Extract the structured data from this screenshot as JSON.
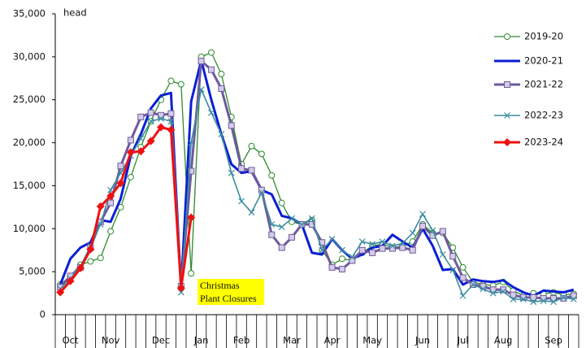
{
  "chart_data": {
    "type": "line",
    "y_label": "head",
    "categories": [
      null,
      "Oct",
      null,
      null,
      null,
      "Nov",
      null,
      null,
      null,
      null,
      "Dec",
      null,
      null,
      null,
      "Jan",
      null,
      null,
      null,
      "Feb",
      null,
      null,
      null,
      null,
      "Mar",
      null,
      null,
      null,
      "Apr",
      null,
      null,
      null,
      "May",
      null,
      null,
      null,
      null,
      "Jun",
      null,
      null,
      null,
      "Jul",
      null,
      null,
      null,
      "Aug",
      null,
      null,
      null,
      null,
      "Sep",
      null,
      null
    ],
    "ylim": [
      0,
      35000
    ],
    "yticks": [
      0,
      {
        "value": 5000,
        "label": "5,000"
      },
      {
        "value": 10000,
        "label": "10,000"
      },
      {
        "value": 15000,
        "label": "15,000"
      },
      {
        "value": 20000,
        "label": "20,000"
      },
      {
        "value": 25000,
        "label": "25,000"
      },
      {
        "value": 30000,
        "label": "30,000"
      },
      {
        "value": 35000,
        "label": "35,000"
      }
    ],
    "grid": false,
    "legend": "upper right",
    "annotation": {
      "lines": [
        "Christmas",
        "Plant Closures"
      ],
      "color": "#ffff00"
    },
    "series": [
      {
        "name": "2019-20",
        "color": "#2e8b2e",
        "marker": "circle",
        "values": [
          3500,
          4500,
          5800,
          6200,
          6600,
          9700,
          12500,
          16000,
          19500,
          22500,
          25000,
          27200,
          26800,
          4800,
          30000,
          30500,
          28000,
          23000,
          17500,
          19600,
          18700,
          16200,
          13000,
          10800,
          10500,
          11000,
          7500,
          5800,
          6500,
          6300,
          7200,
          8000,
          8200,
          7800,
          8000,
          8500,
          10500,
          9500,
          9500,
          7800,
          5500,
          3800,
          3500,
          3400,
          3800,
          2800,
          2200,
          2500,
          2400,
          2600,
          2300,
          2400
        ]
      },
      {
        "name": "2020-21",
        "color": "#0a1ed6",
        "marker": "none",
        "values": [
          3500,
          6500,
          7800,
          8400,
          11000,
          10800,
          13500,
          18500,
          21000,
          24000,
          25500,
          25800,
          3000,
          24800,
          29600,
          25000,
          21000,
          17500,
          16500,
          16700,
          14500,
          14000,
          11500,
          11200,
          10500,
          7200,
          7000,
          8800,
          7500,
          6500,
          7000,
          7800,
          8000,
          9300,
          8500,
          7800,
          10000,
          8000,
          5200,
          5300,
          3500,
          4100,
          3900,
          3800,
          4000,
          3200,
          2600,
          2200,
          2800,
          2700,
          2600,
          2900
        ]
      },
      {
        "name": "2021-22",
        "color": "#6e5a9c",
        "marker": "square",
        "values": [
          3200,
          4500,
          5500,
          7800,
          10800,
          13000,
          17300,
          20300,
          23000,
          23500,
          23200,
          23400,
          3300,
          16700,
          29500,
          28500,
          26300,
          22000,
          17000,
          16800,
          14500,
          9300,
          7800,
          9000,
          10500,
          10500,
          8400,
          5500,
          5300,
          6300,
          7500,
          7200,
          7700,
          7700,
          7800,
          7500,
          10300,
          9200,
          9700,
          6800,
          4300,
          3500,
          3300,
          2900,
          2900,
          2300,
          2000,
          2000,
          1900,
          1900,
          1900,
          2200
        ]
      },
      {
        "name": "2022-23",
        "color": "#3a8ca0",
        "marker": "x",
        "values": [
          3000,
          4200,
          5600,
          8000,
          10500,
          14500,
          16500,
          18500,
          20500,
          22500,
          22800,
          22500,
          2600,
          20000,
          26200,
          23500,
          21000,
          16500,
          13200,
          11900,
          14200,
          10500,
          10200,
          11200,
          10500,
          11200,
          7500,
          8800,
          7500,
          6700,
          8500,
          8200,
          8500,
          8000,
          8300,
          9500,
          11700,
          9800,
          7000,
          5200,
          2200,
          3500,
          3000,
          2500,
          2700,
          1800,
          1800,
          1500,
          1600,
          1500,
          2000,
          1800
        ]
      },
      {
        "name": "2023-24",
        "color": "#ee1111",
        "marker": "diamond",
        "values": [
          2600,
          3900,
          5400,
          7600,
          12600,
          13800,
          15300,
          18900,
          19000,
          20200,
          21800,
          21500,
          3100,
          11300,
          null,
          null,
          null,
          null,
          null,
          null,
          null,
          null,
          null,
          null,
          null,
          null,
          null,
          null,
          null,
          null,
          null,
          null,
          null,
          null,
          null,
          null,
          null,
          null,
          null,
          null,
          null,
          null,
          null,
          null,
          null,
          null,
          null,
          null,
          null,
          null,
          null,
          null
        ]
      }
    ]
  }
}
